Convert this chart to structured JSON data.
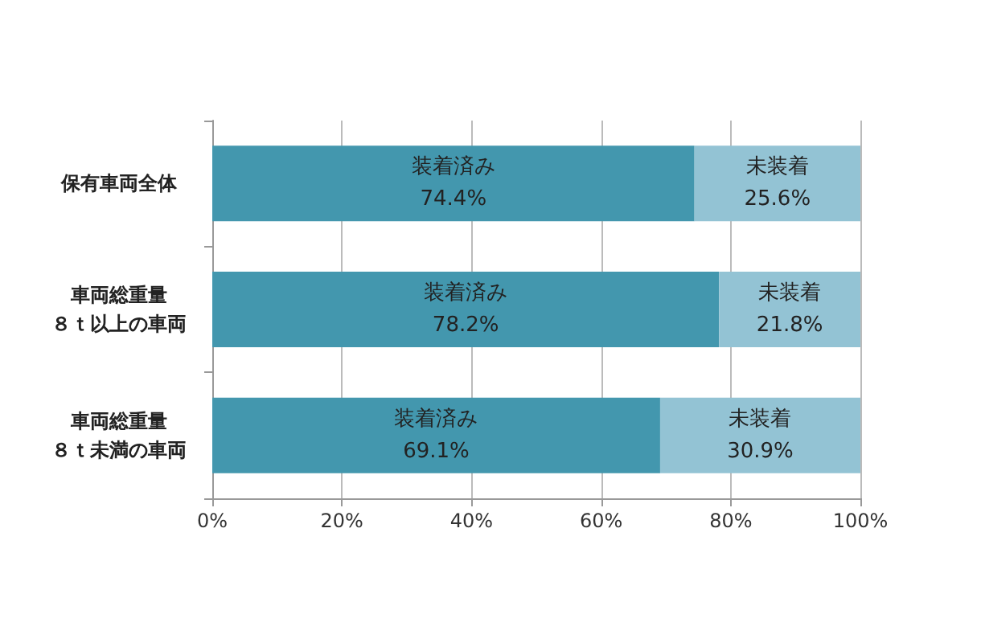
{
  "chart_data": {
    "type": "bar",
    "orientation": "horizontal",
    "stacked": true,
    "categories": [
      "保有車両全体",
      "車両総重量８ｔ以上の車両",
      "車両総重量８ｔ未満の車両"
    ],
    "series": [
      {
        "name": "装着済み",
        "color": "#4397ae",
        "values": [
          74.4,
          78.2,
          69.1
        ],
        "value_labels": [
          "74.4%",
          "78.2%",
          "69.1%"
        ]
      },
      {
        "name": "未装着",
        "color": "#93c3d4",
        "values": [
          25.6,
          21.8,
          30.9
        ],
        "value_labels": [
          "25.6%",
          "21.8%",
          "30.9%"
        ]
      }
    ],
    "xlim": [
      0,
      100
    ],
    "xticks": [
      {
        "value": 0,
        "label": "0%"
      },
      {
        "value": 20,
        "label": "20%"
      },
      {
        "value": 40,
        "label": "40%"
      },
      {
        "value": 60,
        "label": "60%"
      },
      {
        "value": 80,
        "label": "80%"
      },
      {
        "value": 100,
        "label": "100%"
      }
    ],
    "grid": "x",
    "legend": false
  }
}
